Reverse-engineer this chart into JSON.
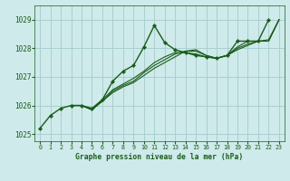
{
  "title": "Graphe pression niveau de la mer (hPa)",
  "background_color": "#ceeaea",
  "grid_color": "#aacfcf",
  "line_color": "#1a5c1a",
  "marker_color": "#1a5c1a",
  "xlim": [
    -0.5,
    23.5
  ],
  "ylim": [
    1024.75,
    1029.5
  ],
  "yticks": [
    1025,
    1026,
    1027,
    1028,
    1029
  ],
  "xticks": [
    0,
    1,
    2,
    3,
    4,
    5,
    6,
    7,
    8,
    9,
    10,
    11,
    12,
    13,
    14,
    15,
    16,
    17,
    18,
    19,
    20,
    21,
    22,
    23
  ],
  "series": [
    {
      "x": [
        0,
        1,
        2,
        3,
        4,
        5,
        6,
        7,
        8,
        9,
        10,
        11,
        12,
        13,
        14,
        15,
        16,
        17,
        18,
        19,
        20,
        21,
        22
      ],
      "y": [
        1025.2,
        1025.65,
        1025.9,
        1026.0,
        1026.0,
        1025.9,
        1026.2,
        1026.85,
        1027.2,
        1027.4,
        1028.05,
        1028.8,
        1028.2,
        1027.95,
        1027.85,
        1027.75,
        1027.7,
        1027.65,
        1027.75,
        1028.25,
        1028.25,
        1028.25,
        1029.0
      ],
      "marker": true,
      "lw": 1.0
    },
    {
      "x": [
        3,
        4,
        5,
        6,
        7,
        8,
        9,
        10,
        11,
        12,
        13,
        14,
        15,
        16,
        17,
        18,
        19,
        20,
        21,
        22,
        23
      ],
      "y": [
        1026.0,
        1026.0,
        1025.85,
        1026.15,
        1026.45,
        1026.65,
        1026.8,
        1027.05,
        1027.3,
        1027.5,
        1027.7,
        1027.9,
        1027.95,
        1027.75,
        1027.65,
        1027.75,
        1027.95,
        1028.1,
        1028.25,
        1028.25,
        1029.0
      ],
      "marker": false,
      "lw": 0.8
    },
    {
      "x": [
        3,
        4,
        5,
        6,
        7,
        8,
        9,
        10,
        11,
        12,
        13,
        14,
        15,
        16,
        17,
        18,
        19,
        20,
        21,
        22,
        23
      ],
      "y": [
        1026.0,
        1026.0,
        1025.85,
        1026.2,
        1026.55,
        1026.75,
        1026.95,
        1027.2,
        1027.5,
        1027.7,
        1027.85,
        1027.85,
        1027.8,
        1027.7,
        1027.65,
        1027.75,
        1028.05,
        1028.25,
        1028.25,
        1028.3,
        1029.0
      ],
      "marker": false,
      "lw": 0.8
    },
    {
      "x": [
        3,
        4,
        5,
        6,
        7,
        8,
        9,
        10,
        11,
        12,
        13,
        14,
        15,
        16,
        17,
        18,
        19,
        20,
        21,
        22,
        23
      ],
      "y": [
        1026.0,
        1026.0,
        1025.85,
        1026.15,
        1026.5,
        1026.7,
        1026.85,
        1027.15,
        1027.4,
        1027.6,
        1027.8,
        1027.9,
        1027.9,
        1027.75,
        1027.65,
        1027.75,
        1028.0,
        1028.15,
        1028.25,
        1028.25,
        1029.0
      ],
      "marker": false,
      "lw": 0.8
    }
  ]
}
